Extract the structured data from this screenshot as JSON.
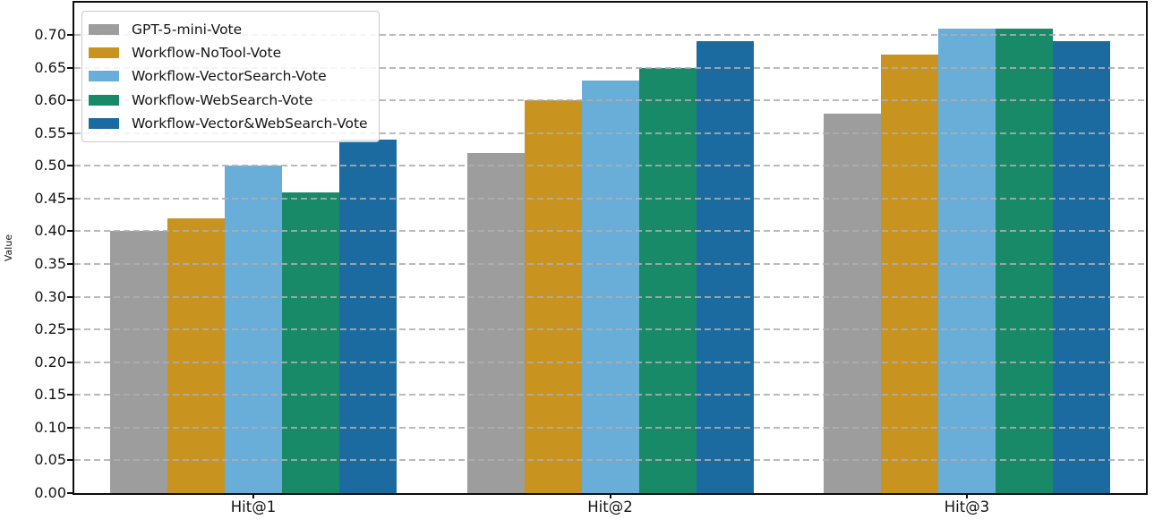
{
  "chart_data": {
    "type": "bar",
    "title": "",
    "xlabel": "",
    "ylabel": "Value",
    "categories": [
      "Hit@1",
      "Hit@2",
      "Hit@3"
    ],
    "series": [
      {
        "name": "GPT-5-mini-Vote",
        "color": "#9d9d9d",
        "values": [
          0.4,
          0.52,
          0.58
        ]
      },
      {
        "name": "Workflow-NoTool-Vote",
        "color": "#c8941f",
        "values": [
          0.42,
          0.6,
          0.67
        ]
      },
      {
        "name": "Workflow-VectorSearch-Vote",
        "color": "#69aed9",
        "values": [
          0.5,
          0.63,
          0.71
        ]
      },
      {
        "name": "Workflow-WebSearch-Vote",
        "color": "#188a68",
        "values": [
          0.46,
          0.65,
          0.71
        ]
      },
      {
        "name": "Workflow-Vector&WebSearch-Vote",
        "color": "#1c6ba0",
        "values": [
          0.54,
          0.69,
          0.69
        ]
      }
    ],
    "ylim": [
      0,
      0.7493
    ],
    "yticks": [
      "0.00",
      "0.05",
      "0.10",
      "0.15",
      "0.20",
      "0.25",
      "0.30",
      "0.35",
      "0.40",
      "0.45",
      "0.50",
      "0.55",
      "0.60",
      "0.65",
      "0.70"
    ],
    "grid": "horizontal-dashed-above-bars",
    "legend_position": "upper-left",
    "colors": {
      "background": "#ffffff",
      "spine": "#0d0d0d",
      "gridline": "#aeaeae",
      "text": "#141414"
    }
  }
}
